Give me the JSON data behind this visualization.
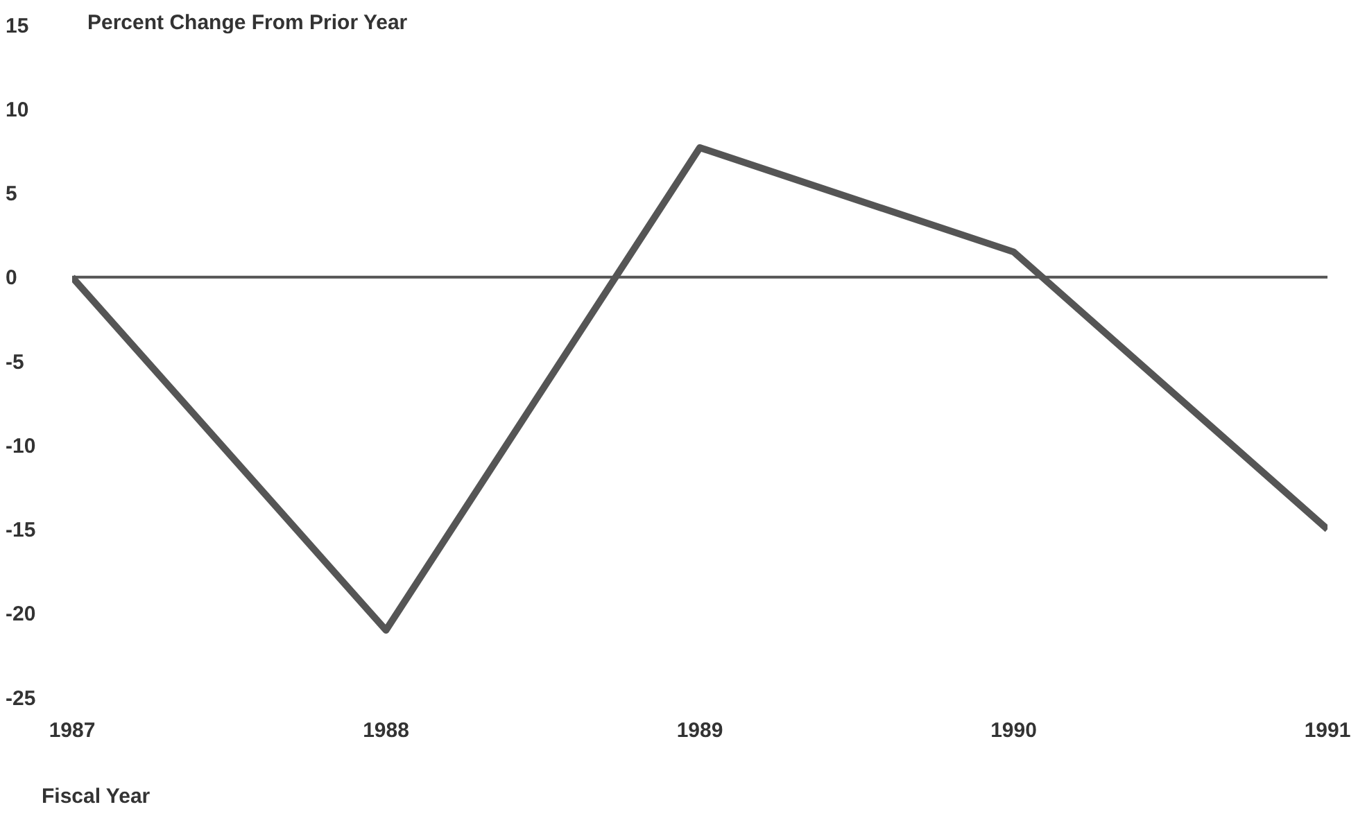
{
  "chart_data": {
    "type": "line",
    "ylabel": "Percent Change From Prior Year",
    "xlabel": "Fiscal Year",
    "categories": [
      "1987",
      "1988",
      "1989",
      "1990",
      "1991"
    ],
    "series": [
      {
        "color": "#555555",
        "values": [
          0,
          -21,
          7.7,
          1.5,
          -15
        ]
      }
    ],
    "ylim": [
      -25,
      15
    ],
    "yticks": [
      -25,
      -20,
      -15,
      -10,
      -5,
      0,
      5,
      10,
      15
    ],
    "ref_lines": [
      {
        "axis": "y",
        "value": 0,
        "color": "#555555"
      }
    ],
    "grid": false,
    "legend": false,
    "marker": "none",
    "line_style": "solid"
  }
}
